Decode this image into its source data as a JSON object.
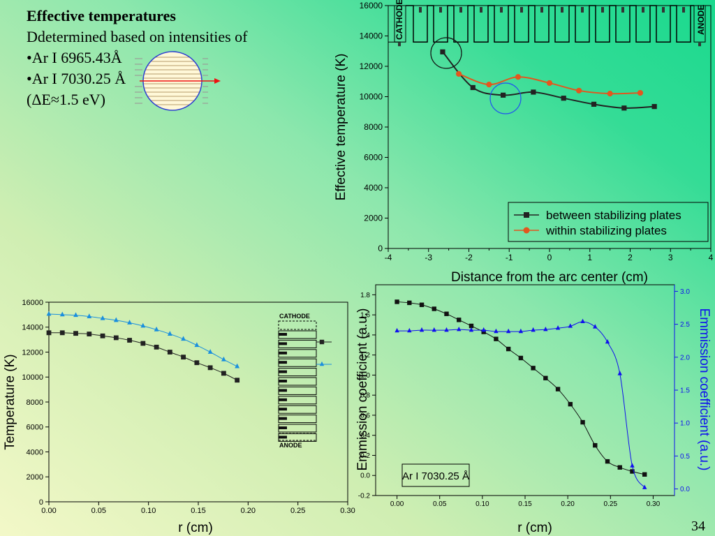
{
  "slide": {
    "title": "Effective temperatures",
    "line1": "Ddetermined based on intensities of",
    "line2": "•Ar I 6965.43Å",
    "line3": "•Ar I 7030.25 Å",
    "line4": "(ΔE≈1.5 eV)",
    "page_number": "34"
  },
  "chart_data": [
    {
      "type": "line",
      "xlabel": "Distance from the arc center (cm)",
      "ylabel": "Effective temperature (K)",
      "xlim": [
        -4,
        4
      ],
      "ylim": [
        0,
        16000
      ],
      "xticks": [
        "-4",
        "-3",
        "-2",
        "-1",
        "0",
        "1",
        "2",
        "3",
        "4"
      ],
      "yticks": [
        "0",
        "2000",
        "4000",
        "6000",
        "8000",
        "10000",
        "12000",
        "14000",
        "16000"
      ],
      "cathode_label": "CATHODE",
      "anode_label": "ANODE",
      "legend_position": "bottom-right",
      "series": [
        {
          "name": "between stabilizing plates",
          "color": "#222222",
          "marker": "square",
          "x": [
            -2.65,
            -1.9,
            -1.15,
            -0.4,
            0.35,
            1.1,
            1.85,
            2.6
          ],
          "y": [
            12950,
            10600,
            10100,
            10300,
            9900,
            9500,
            9250,
            9350
          ]
        },
        {
          "name": "within stabilizing plates",
          "color": "#e2571e",
          "marker": "circle",
          "x": [
            -2.25,
            -1.5,
            -0.78,
            0,
            0.73,
            1.5,
            2.25
          ],
          "y": [
            11500,
            10800,
            11300,
            10900,
            10400,
            10200,
            10250
          ]
        }
      ],
      "highlight_colors": [
        "#111111",
        "#2255ee"
      ]
    },
    {
      "type": "line",
      "xlabel": "r (cm)",
      "ylabel": "Temperature (K)",
      "xlim": [
        0,
        0.3
      ],
      "ylim": [
        0,
        16000
      ],
      "xticks": [
        "0.00",
        "0.05",
        "0.10",
        "0.15",
        "0.20",
        "0.25",
        "0.30"
      ],
      "yticks": [
        "0",
        "2000",
        "4000",
        "6000",
        "8000",
        "10000",
        "12000",
        "14000",
        "16000"
      ],
      "inset_labels": {
        "top": "CATHODE",
        "bottom": "ANODE"
      },
      "series": [
        {
          "color": "#222222",
          "marker": "square",
          "x": [
            0,
            0.0135,
            0.027,
            0.0405,
            0.054,
            0.0675,
            0.081,
            0.0945,
            0.108,
            0.1215,
            0.135,
            0.1485,
            0.162,
            0.1755,
            0.189
          ],
          "y": [
            13550,
            13550,
            13500,
            13450,
            13300,
            13150,
            12950,
            12700,
            12400,
            12000,
            11600,
            11150,
            10750,
            10300,
            9750
          ]
        },
        {
          "color": "#1a8fdd",
          "marker": "triangle",
          "x": [
            0,
            0.0135,
            0.027,
            0.0405,
            0.054,
            0.0675,
            0.081,
            0.0945,
            0.108,
            0.1215,
            0.135,
            0.1485,
            0.162,
            0.1755,
            0.189
          ],
          "y": [
            15050,
            15000,
            14950,
            14850,
            14700,
            14550,
            14350,
            14100,
            13800,
            13450,
            13050,
            12550,
            12000,
            11400,
            10850
          ]
        }
      ]
    },
    {
      "type": "line",
      "xlabel": "r (cm)",
      "ylabel": "Emmission coefficient (a.u.)",
      "y2label": "Emmission coefficient (a.u.)",
      "annotation": "Ar I 7030.25 Å",
      "xlim": [
        -0.025,
        0.325
      ],
      "ylim": [
        -0.2,
        1.9
      ],
      "y2lim": [
        -0.1,
        3.1
      ],
      "xticks": [
        "0.00",
        "0.05",
        "0.10",
        "0.15",
        "0.20",
        "0.25",
        "0.30"
      ],
      "yticks": [
        "-0.2",
        "0.0",
        "0.2",
        "0.4",
        "0.6",
        "0.8",
        "1.0",
        "1.2",
        "1.4",
        "1.6",
        "1.8"
      ],
      "y2ticks": [
        "0.0",
        "0.5",
        "1.0",
        "1.5",
        "2.0",
        "2.5",
        "3.0"
      ],
      "series": [
        {
          "color": "#111111",
          "marker": "square",
          "axis": "left",
          "x": [
            0,
            0.0145,
            0.029,
            0.0435,
            0.058,
            0.0725,
            0.087,
            0.1015,
            0.116,
            0.1305,
            0.145,
            0.1595,
            0.174,
            0.1885,
            0.203,
            0.2175,
            0.232,
            0.2465,
            0.261,
            0.2755,
            0.29
          ],
          "y": [
            1.73,
            1.72,
            1.7,
            1.66,
            1.61,
            1.55,
            1.49,
            1.43,
            1.36,
            1.26,
            1.17,
            1.07,
            0.97,
            0.86,
            0.71,
            0.53,
            0.3,
            0.14,
            0.08,
            0.04,
            0.01
          ]
        },
        {
          "color": "#1010ee",
          "marker": "triangle",
          "axis": "right",
          "x": [
            0,
            0.0145,
            0.029,
            0.0435,
            0.058,
            0.0725,
            0.087,
            0.1015,
            0.116,
            0.1305,
            0.145,
            0.1595,
            0.174,
            0.1885,
            0.203,
            0.2175,
            0.232,
            0.2465,
            0.261,
            0.2755,
            0.29
          ],
          "y": [
            2.4,
            2.4,
            2.41,
            2.41,
            2.41,
            2.42,
            2.41,
            2.41,
            2.39,
            2.39,
            2.39,
            2.41,
            2.42,
            2.44,
            2.47,
            2.54,
            2.46,
            2.23,
            1.75,
            0.35,
            0.02
          ]
        }
      ]
    }
  ]
}
